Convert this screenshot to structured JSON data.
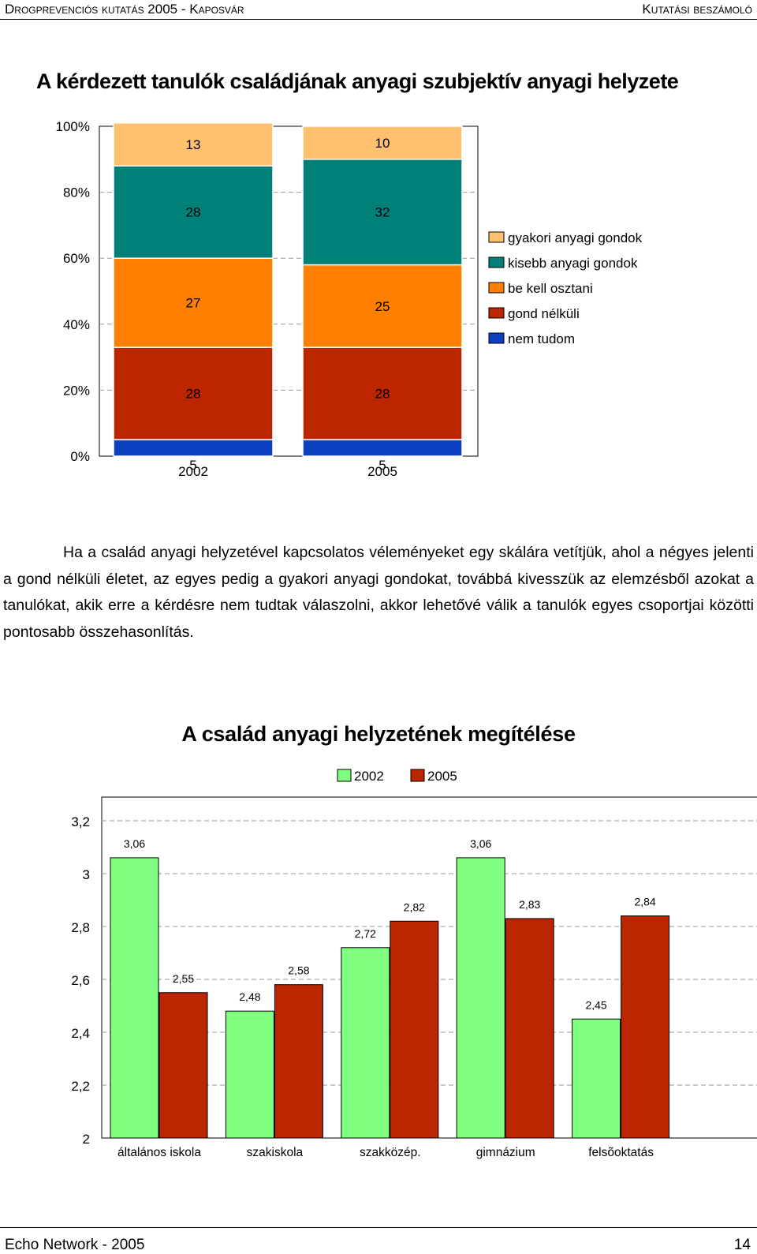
{
  "header": {
    "left": "Drogprevenciós kutatás 2005 - Kaposvár",
    "right": "Kutatási beszámoló"
  },
  "chart1_title": "A kérdezett tanulók családjának anyagi szubjektív anyagi helyzete",
  "paragraph": "Ha a család anyagi helyzetével kapcsolatos véleményeket egy skálára vetítjük, ahol a négyes jelenti a gond nélküli életet, az egyes pedig a gyakori anyagi gondokat, továbbá kivesszük az elemzésből azokat a tanulókat, akik erre a kérdésre nem tudtak válaszolni, akkor lehetővé válik a tanulók egyes csoportjai közötti pontosabb összehasonlítás.",
  "chart2_title": "A család anyagi helyzetének megítélése",
  "footer": {
    "left": "Echo Network - 2005",
    "right": "14"
  },
  "chart_data": [
    {
      "type": "bar",
      "stacked": true,
      "percent": true,
      "title": "A kérdezett tanulók családjának anyagi szubjektív anyagi helyzete",
      "categories": [
        "2002",
        "2005"
      ],
      "y_ticks": [
        "0%",
        "20%",
        "40%",
        "60%",
        "80%",
        "100%"
      ],
      "ylim": [
        0,
        100
      ],
      "legend_position": "right",
      "series": [
        {
          "name": "nem tudom",
          "values": [
            5,
            5
          ],
          "labels": [
            "5",
            "5"
          ],
          "color": "#0a3fc0"
        },
        {
          "name": "gond nélküli",
          "values": [
            28,
            28
          ],
          "labels": [
            "28",
            "28"
          ],
          "color": "#bb2500"
        },
        {
          "name": "be kell osztani",
          "values": [
            27,
            25
          ],
          "labels": [
            "27",
            "25"
          ],
          "color": "#ff8000"
        },
        {
          "name": "kisebb anyagi gondok",
          "values": [
            28,
            32
          ],
          "labels": [
            "28",
            "32"
          ],
          "color": "#008078"
        },
        {
          "name": "gyakori anyagi gondok",
          "values": [
            13,
            10
          ],
          "labels": [
            "13",
            "10"
          ],
          "color": "#ffc070"
        }
      ]
    },
    {
      "type": "bar",
      "title": "A család anyagi helyzetének megítélése",
      "categories": [
        "általános iskola",
        "szakiskola",
        "szakközép.",
        "gimnázium",
        "felsõoktatás"
      ],
      "y_ticks": [
        "2",
        "2,2",
        "2,4",
        "2,6",
        "2,8",
        "3",
        "3,2"
      ],
      "ylim": [
        2,
        3.2
      ],
      "grid": true,
      "legend_position": "top",
      "series": [
        {
          "name": "2002",
          "values": [
            3.06,
            2.48,
            2.72,
            3.06,
            2.45
          ],
          "labels": [
            "3,06",
            "2,48",
            "2,72",
            "3,06",
            "2,45"
          ],
          "color": "#80ff80"
        },
        {
          "name": "2005",
          "values": [
            2.55,
            2.58,
            2.82,
            2.83,
            2.84
          ],
          "labels": [
            "2,55",
            "2,58",
            "2,82",
            "2,83",
            "2,84"
          ],
          "color": "#bb2500"
        }
      ]
    }
  ]
}
